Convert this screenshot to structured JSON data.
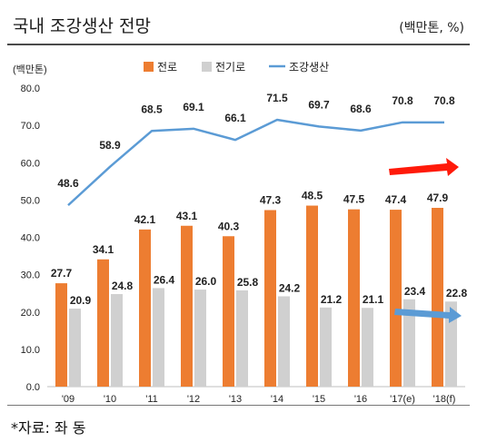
{
  "header": {
    "title": "국내 조강생산 전망",
    "unit": "(백만톤, %)"
  },
  "footer": {
    "source": "*자료: 좌 동"
  },
  "colors": {
    "converter": "#ed7d31",
    "electric": "#d0d0d0",
    "crude": "#5b9bd5",
    "up_arrow": "#ff1a0a",
    "down_arrow": "#5b9bd5"
  },
  "chart_data": {
    "type": "bar",
    "ylabel": "(백만톤)",
    "ylim": [
      0,
      80
    ],
    "yticks": [
      "0.0",
      "10.0",
      "20.0",
      "30.0",
      "40.0",
      "50.0",
      "60.0",
      "70.0",
      "80.0"
    ],
    "categories": [
      "'09",
      "'10",
      "'11",
      "'12",
      "'13",
      "'14",
      "'15",
      "'16",
      "'17(e)",
      "'18(f)"
    ],
    "series": [
      {
        "name": "전로",
        "type": "bar",
        "values": [
          27.7,
          34.1,
          42.1,
          43.1,
          40.3,
          47.3,
          48.5,
          47.5,
          47.4,
          47.9
        ],
        "labels": [
          "27.7",
          "34.1",
          "42.1",
          "43.1",
          "40.3",
          "47.3",
          "48.5",
          "47.5",
          "47.4",
          "47.9"
        ]
      },
      {
        "name": "전기로",
        "type": "bar",
        "values": [
          20.9,
          24.8,
          26.4,
          26.0,
          25.8,
          24.2,
          21.2,
          21.1,
          23.4,
          22.8
        ],
        "labels": [
          "20.9",
          "24.8",
          "26.4",
          "26.0",
          "25.8",
          "24.2",
          "21.2",
          "21.1",
          "23.4",
          "22.8"
        ]
      },
      {
        "name": "조강생산",
        "type": "line",
        "values": [
          48.6,
          58.9,
          68.5,
          69.1,
          66.1,
          71.5,
          69.7,
          68.6,
          70.8,
          70.8
        ],
        "labels": [
          "48.6",
          "58.9",
          "68.5",
          "69.1",
          "66.1",
          "71.5",
          "69.7",
          "68.6",
          "70.8",
          "70.8"
        ]
      }
    ],
    "legend_position": "top-center",
    "annotations": [
      "up-trend arrow (red) for 전로",
      "down-trend arrow (blue) for 전기로"
    ]
  }
}
